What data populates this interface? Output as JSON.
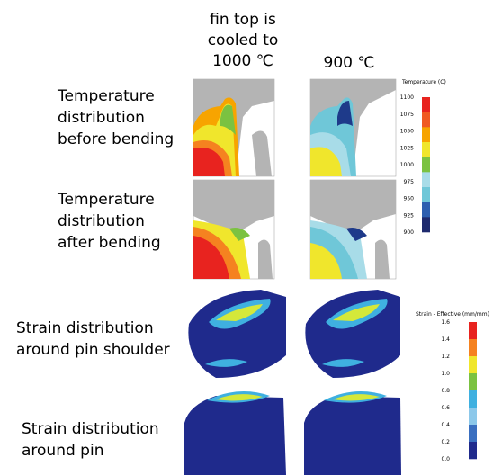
{
  "columns": [
    {
      "lines": [
        "fin top is",
        "cooled to",
        "1000 ℃"
      ]
    },
    {
      "lines": [
        "900 ℃"
      ]
    }
  ],
  "rows": [
    {
      "lines": [
        "Temperature",
        "distribution",
        "before bending"
      ]
    },
    {
      "lines": [
        "Temperature",
        "distribution",
        "after bending"
      ]
    },
    {
      "lines": [
        "Strain distribution",
        "around pin shoulder"
      ]
    },
    {
      "lines": [
        "Strain distribution",
        "around pin"
      ]
    }
  ],
  "temperature_legend": {
    "title": "Temperature (C)",
    "ticks": [
      "1100",
      "1075",
      "1050",
      "1025",
      "1000",
      "975",
      "950",
      "925",
      "900"
    ]
  },
  "strain_legend": {
    "title": "Strain - Effective (mm/mm)",
    "ticks": [
      "1.6",
      "1.4",
      "1.2",
      "1.0",
      "0.8",
      "0.6",
      "0.4",
      "0.2",
      "0.0"
    ]
  }
}
